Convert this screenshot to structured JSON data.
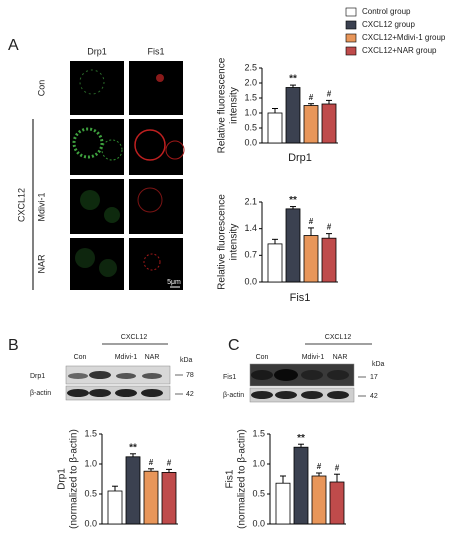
{
  "legend": [
    {
      "name": "Control group",
      "color": "#ffffff"
    },
    {
      "name": "CXCL12 group",
      "color": "#3b4150"
    },
    {
      "name": "CXCL12+Mdivi-1 group",
      "color": "#e8965a"
    },
    {
      "name": "CXCL12+NAR group",
      "color": "#bf4b4b"
    }
  ],
  "panel_a": {
    "label": "A",
    "columns": [
      "Drp1",
      "Fis1"
    ],
    "rows": [
      "Con",
      "Mdivi-1",
      "NAR"
    ],
    "group": "CXCL12",
    "scale_bar": "5μm"
  },
  "panel_b": {
    "label": "B",
    "group": "CXCL12",
    "lanes": [
      "Con",
      "Mdivi-1",
      "NAR"
    ],
    "unit": "kDa",
    "bands": [
      {
        "name": "Drp1",
        "kda": 78
      },
      {
        "name": "β-actin",
        "kda": 42
      }
    ]
  },
  "panel_c": {
    "label": "C",
    "group": "CXCL12",
    "lanes": [
      "Con",
      "Mdivi-1",
      "NAR"
    ],
    "unit": "kDa",
    "bands": [
      {
        "name": "Fis1",
        "kda": 17
      },
      {
        "name": "β-actin",
        "kda": 42
      }
    ]
  },
  "chart_data": [
    {
      "type": "bar",
      "categories": [
        null,
        null,
        null,
        null
      ],
      "values": [
        1.0,
        1.85,
        1.25,
        1.3
      ],
      "errors": [
        0.15,
        0.08,
        0.06,
        0.12
      ],
      "annotations": [
        null,
        "**",
        "#",
        "#"
      ],
      "xlabel": "Drp1",
      "ylabel": [
        "Relative fluorescence",
        "intensity"
      ],
      "ylim": [
        0,
        2.5
      ],
      "yticks": [
        {
          "value": 0,
          "label": "0.0"
        },
        0.5,
        {
          "value": 1,
          "label": "1.0"
        },
        1.5,
        {
          "value": 2,
          "label": "2.0"
        },
        2.5
      ]
    },
    {
      "type": "bar",
      "categories": [
        null,
        null,
        null,
        null
      ],
      "values": [
        1.0,
        1.92,
        1.22,
        1.15
      ],
      "errors": [
        0.12,
        0.06,
        0.2,
        0.12
      ],
      "annotations": [
        null,
        "**",
        "#",
        "#"
      ],
      "xlabel": "Fis1",
      "ylabel": [
        "Relative fluorescence",
        "intensity"
      ],
      "ylim": [
        0,
        2.1
      ],
      "yticks": [
        {
          "value": 0,
          "label": "0.0"
        },
        0.7,
        1.4,
        2.1
      ]
    },
    {
      "type": "bar",
      "categories": [
        null,
        null,
        null,
        null
      ],
      "values": [
        0.55,
        1.12,
        0.88,
        0.86
      ],
      "errors": [
        0.08,
        0.05,
        0.04,
        0.05
      ],
      "annotations": [
        null,
        "**",
        "#",
        "#"
      ],
      "ylabel": [
        "Drp1",
        "(normalized to β-actin)"
      ],
      "ylim": [
        0,
        1.5
      ],
      "yticks": [
        {
          "value": 0,
          "label": "0.0"
        },
        0.5,
        {
          "value": 1,
          "label": "1.0"
        },
        1.5
      ]
    },
    {
      "type": "bar",
      "categories": [
        null,
        null,
        null,
        null
      ],
      "values": [
        0.68,
        1.28,
        0.8,
        0.7
      ],
      "errors": [
        0.12,
        0.05,
        0.05,
        0.13
      ],
      "annotations": [
        null,
        "**",
        "#",
        "#"
      ],
      "ylabel": [
        "Fis1",
        "(normalized to β-actin)"
      ],
      "ylim": [
        0,
        1.5
      ],
      "yticks": [
        {
          "value": 0,
          "label": "0.0"
        },
        0.5,
        {
          "value": 1,
          "label": "1.0"
        },
        1.5
      ]
    }
  ]
}
